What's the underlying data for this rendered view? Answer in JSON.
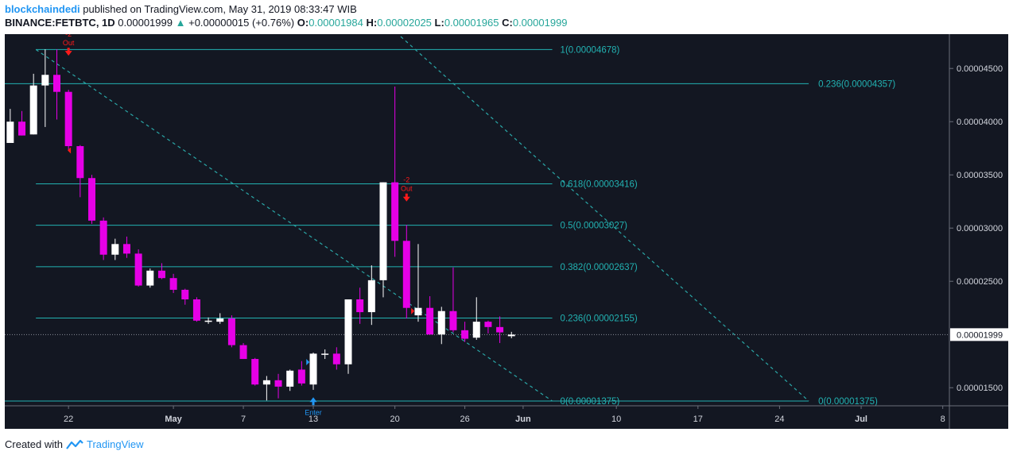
{
  "header": {
    "user": "blockchaindedi",
    "published_text": "published on TradingView.com, May 31, 2019 08:33:47 WIB",
    "symbol": "BINANCE:FETBTC, 1D",
    "last": "0.00001999",
    "change": "+0.00000015 (+0.76%)",
    "o_label": "O:",
    "o_value": "0.00001984",
    "h_label": "H:",
    "h_value": "0.00002025",
    "l_label": "L:",
    "l_value": "0.00001965",
    "c_label": "C:",
    "c_value": "0.00001999"
  },
  "footer": {
    "created_with": "Created with",
    "brand": "TradingView"
  },
  "chart_data": {
    "type": "candlestick",
    "colors": {
      "background": "#131722",
      "up": "#ffffff",
      "down": "#e600e6",
      "fib": "#22b2b2",
      "trend": "#2aa7a7",
      "signal_out": "#ff1a1a",
      "signal_enter": "#2196f3"
    },
    "ylim": [
      1.33e-05,
      4.8e-05
    ],
    "y_ticks": [
      "0.00004500",
      "0.00004000",
      "0.00003500",
      "0.00003000",
      "0.00002500",
      "0.00001500"
    ],
    "y_tick_values": [
      4.5e-05,
      4e-05,
      3.5e-05,
      3e-05,
      2.5e-05,
      1.5e-05
    ],
    "x_labels": [
      "22",
      "May",
      "7",
      "13",
      "20",
      "26",
      "Jun",
      "10",
      "17",
      "24",
      "Jul",
      "8"
    ],
    "x_label_days": [
      1,
      10,
      16,
      22,
      29,
      35,
      40,
      48,
      55,
      62,
      69,
      76
    ],
    "current_price_label": "0.00001999",
    "current_price": 1.999e-05,
    "first_day_label": "Apr 21 = day 0",
    "candles": [
      {
        "d": -4,
        "o": 3.8,
        "h": 4.12,
        "l": 3.8,
        "c": 4.0
      },
      {
        "d": -3,
        "o": 4.0,
        "h": 4.1,
        "l": 3.87,
        "c": 3.87
      },
      {
        "d": -2,
        "o": 3.88,
        "h": 4.45,
        "l": 3.88,
        "c": 4.34
      },
      {
        "d": -1,
        "o": 4.34,
        "h": 4.68,
        "l": 3.95,
        "c": 4.44
      },
      {
        "d": 0,
        "o": 4.44,
        "h": 4.68,
        "l": 4.02,
        "c": 4.28
      },
      {
        "d": 1,
        "o": 4.28,
        "h": 4.3,
        "l": 3.73,
        "c": 3.77
      },
      {
        "d": 2,
        "o": 3.77,
        "h": 3.78,
        "l": 3.29,
        "c": 3.47
      },
      {
        "d": 3,
        "o": 3.47,
        "h": 3.5,
        "l": 3.04,
        "c": 3.07
      },
      {
        "d": 4,
        "o": 3.07,
        "h": 3.1,
        "l": 2.7,
        "c": 2.75
      },
      {
        "d": 5,
        "o": 2.75,
        "h": 2.9,
        "l": 2.7,
        "c": 2.85
      },
      {
        "d": 6,
        "o": 2.85,
        "h": 2.92,
        "l": 2.72,
        "c": 2.76
      },
      {
        "d": 7,
        "o": 2.76,
        "h": 2.8,
        "l": 2.45,
        "c": 2.46
      },
      {
        "d": 8,
        "o": 2.46,
        "h": 2.62,
        "l": 2.44,
        "c": 2.6
      },
      {
        "d": 9,
        "o": 2.6,
        "h": 2.67,
        "l": 2.52,
        "c": 2.53
      },
      {
        "d": 10,
        "o": 2.53,
        "h": 2.57,
        "l": 2.39,
        "c": 2.42
      },
      {
        "d": 11,
        "o": 2.42,
        "h": 2.43,
        "l": 2.28,
        "c": 2.33
      },
      {
        "d": 12,
        "o": 2.33,
        "h": 2.35,
        "l": 2.12,
        "c": 2.13
      },
      {
        "d": 13,
        "o": 2.13,
        "h": 2.16,
        "l": 2.1,
        "c": 2.13
      },
      {
        "d": 14,
        "o": 2.12,
        "h": 2.2,
        "l": 2.1,
        "c": 2.15
      },
      {
        "d": 15,
        "o": 2.15,
        "h": 2.18,
        "l": 1.88,
        "c": 1.9
      },
      {
        "d": 16,
        "o": 1.9,
        "h": 1.92,
        "l": 1.77,
        "c": 1.77
      },
      {
        "d": 17,
        "o": 1.77,
        "h": 1.78,
        "l": 1.52,
        "c": 1.53
      },
      {
        "d": 18,
        "o": 1.53,
        "h": 1.61,
        "l": 1.38,
        "c": 1.57
      },
      {
        "d": 19,
        "o": 1.57,
        "h": 1.63,
        "l": 1.4,
        "c": 1.51
      },
      {
        "d": 20,
        "o": 1.51,
        "h": 1.67,
        "l": 1.47,
        "c": 1.66
      },
      {
        "d": 21,
        "o": 1.67,
        "h": 1.75,
        "l": 1.52,
        "c": 1.54
      },
      {
        "d": 22,
        "o": 1.53,
        "h": 1.83,
        "l": 1.48,
        "c": 1.82
      },
      {
        "d": 23,
        "o": 1.82,
        "h": 1.86,
        "l": 1.77,
        "c": 1.82
      },
      {
        "d": 24,
        "o": 1.82,
        "h": 1.88,
        "l": 1.67,
        "c": 1.72
      },
      {
        "d": 25,
        "o": 1.72,
        "h": 2.33,
        "l": 1.63,
        "c": 2.33
      },
      {
        "d": 26,
        "o": 2.33,
        "h": 2.44,
        "l": 2.1,
        "c": 2.21
      },
      {
        "d": 27,
        "o": 2.21,
        "h": 2.65,
        "l": 2.09,
        "c": 2.51
      },
      {
        "d": 28,
        "o": 2.51,
        "h": 3.43,
        "l": 2.35,
        "c": 3.43
      },
      {
        "d": 29,
        "o": 3.43,
        "h": 4.33,
        "l": 2.73,
        "c": 2.88
      },
      {
        "d": 30,
        "o": 2.88,
        "h": 3.03,
        "l": 2.15,
        "c": 2.25
      },
      {
        "d": 31,
        "o": 2.18,
        "h": 2.85,
        "l": 2.12,
        "c": 2.25
      },
      {
        "d": 32,
        "o": 2.25,
        "h": 2.36,
        "l": 2.0,
        "c": 2.0
      },
      {
        "d": 33,
        "o": 2.0,
        "h": 2.26,
        "l": 1.91,
        "c": 2.22
      },
      {
        "d": 34,
        "o": 2.22,
        "h": 2.63,
        "l": 2.02,
        "c": 2.04
      },
      {
        "d": 35,
        "o": 2.04,
        "h": 2.12,
        "l": 1.93,
        "c": 1.96
      },
      {
        "d": 36,
        "o": 1.97,
        "h": 2.35,
        "l": 1.95,
        "c": 2.12
      },
      {
        "d": 37,
        "o": 2.12,
        "h": 2.13,
        "l": 2.01,
        "c": 2.07
      },
      {
        "d": 38,
        "o": 2.07,
        "h": 2.17,
        "l": 1.92,
        "c": 2.02
      },
      {
        "d": 39,
        "o": 1.984,
        "h": 2.025,
        "l": 1.965,
        "c": 1.999
      }
    ],
    "price_unit": "1e-5 BTC",
    "fib_left": [
      {
        "label": "1(0.00004678)",
        "value": 4.678e-05
      },
      {
        "label": "0.618(0.00003416)",
        "value": 3.416e-05
      },
      {
        "label": "0.5(0.00003027)",
        "value": 3.027e-05
      },
      {
        "label": "0.382(0.00002637)",
        "value": 2.637e-05
      },
      {
        "label": "0.236(0.00002155)",
        "value": 2.155e-05
      },
      {
        "label": "0(0.00001375)",
        "value": 1.375e-05
      }
    ],
    "fib_right": [
      {
        "label": "0.236(0.00004357)",
        "value": 4.357e-05
      },
      {
        "label": "0(0.00001375)",
        "value": 1.375e-05
      }
    ],
    "signals": [
      {
        "type": "out",
        "text1": "-2",
        "text2": "Out",
        "d": 1,
        "price": 4.65e-05
      },
      {
        "type": "out",
        "text1": "-2",
        "text2": "Out",
        "d": 30,
        "price": 3.28e-05
      },
      {
        "type": "enter",
        "text1": "Enter",
        "d": 22,
        "price": 1.38e-05
      }
    ]
  }
}
